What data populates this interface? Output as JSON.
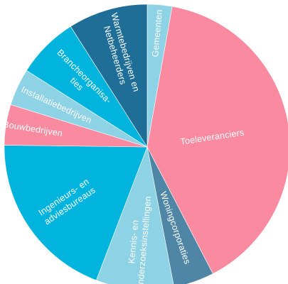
{
  "chart_data": {
    "type": "pie",
    "title": "",
    "slices": [
      {
        "name": "Gemeenten",
        "label_lines": [
          "Gemeenten"
        ],
        "value": 2.8,
        "color": "#8ed2e6"
      },
      {
        "name": "Toeleveranciers",
        "label_lines": [
          "Toeleveranciers"
        ],
        "value": 39.6,
        "color": "#fa8aa0"
      },
      {
        "name": "Woningcorporaties",
        "label_lines": [
          "Woningcorporaties"
        ],
        "value": 4.6,
        "color": "#4f86a5"
      },
      {
        "name": "Kennis- en onderzoeksinstellingen",
        "label_lines": [
          "Kennis- en",
          "onderzoeksinstellingen"
        ],
        "value": 8.8,
        "color": "#8ed2e6"
      },
      {
        "name": "Ingenieurs- en adviesbureaus",
        "label_lines": [
          "Ingenieurs- en",
          "adviesbureaus"
        ],
        "value": 19.4,
        "color": "#00b4dd"
      },
      {
        "name": "Bouwbedrijven",
        "label_lines": [
          "Bouwbedrijven"
        ],
        "value": 4.6,
        "color": "#fa8aa0"
      },
      {
        "name": "Installatiebedrijven",
        "label_lines": [
          "Installatiebedrijven"
        ],
        "value": 4.2,
        "color": "#8ed2e6"
      },
      {
        "name": "Brancheorganisaties",
        "label_lines": [
          "Brancheorganisa-",
          "ties"
        ],
        "value": 7.0,
        "color": "#00b4dd"
      },
      {
        "name": "Warmtebedrijven en Netbeheerders",
        "label_lines": [
          "Warmtebedrijven en",
          "Netbeheerders"
        ],
        "value": 9.0,
        "color": "#1f6e98"
      }
    ]
  }
}
